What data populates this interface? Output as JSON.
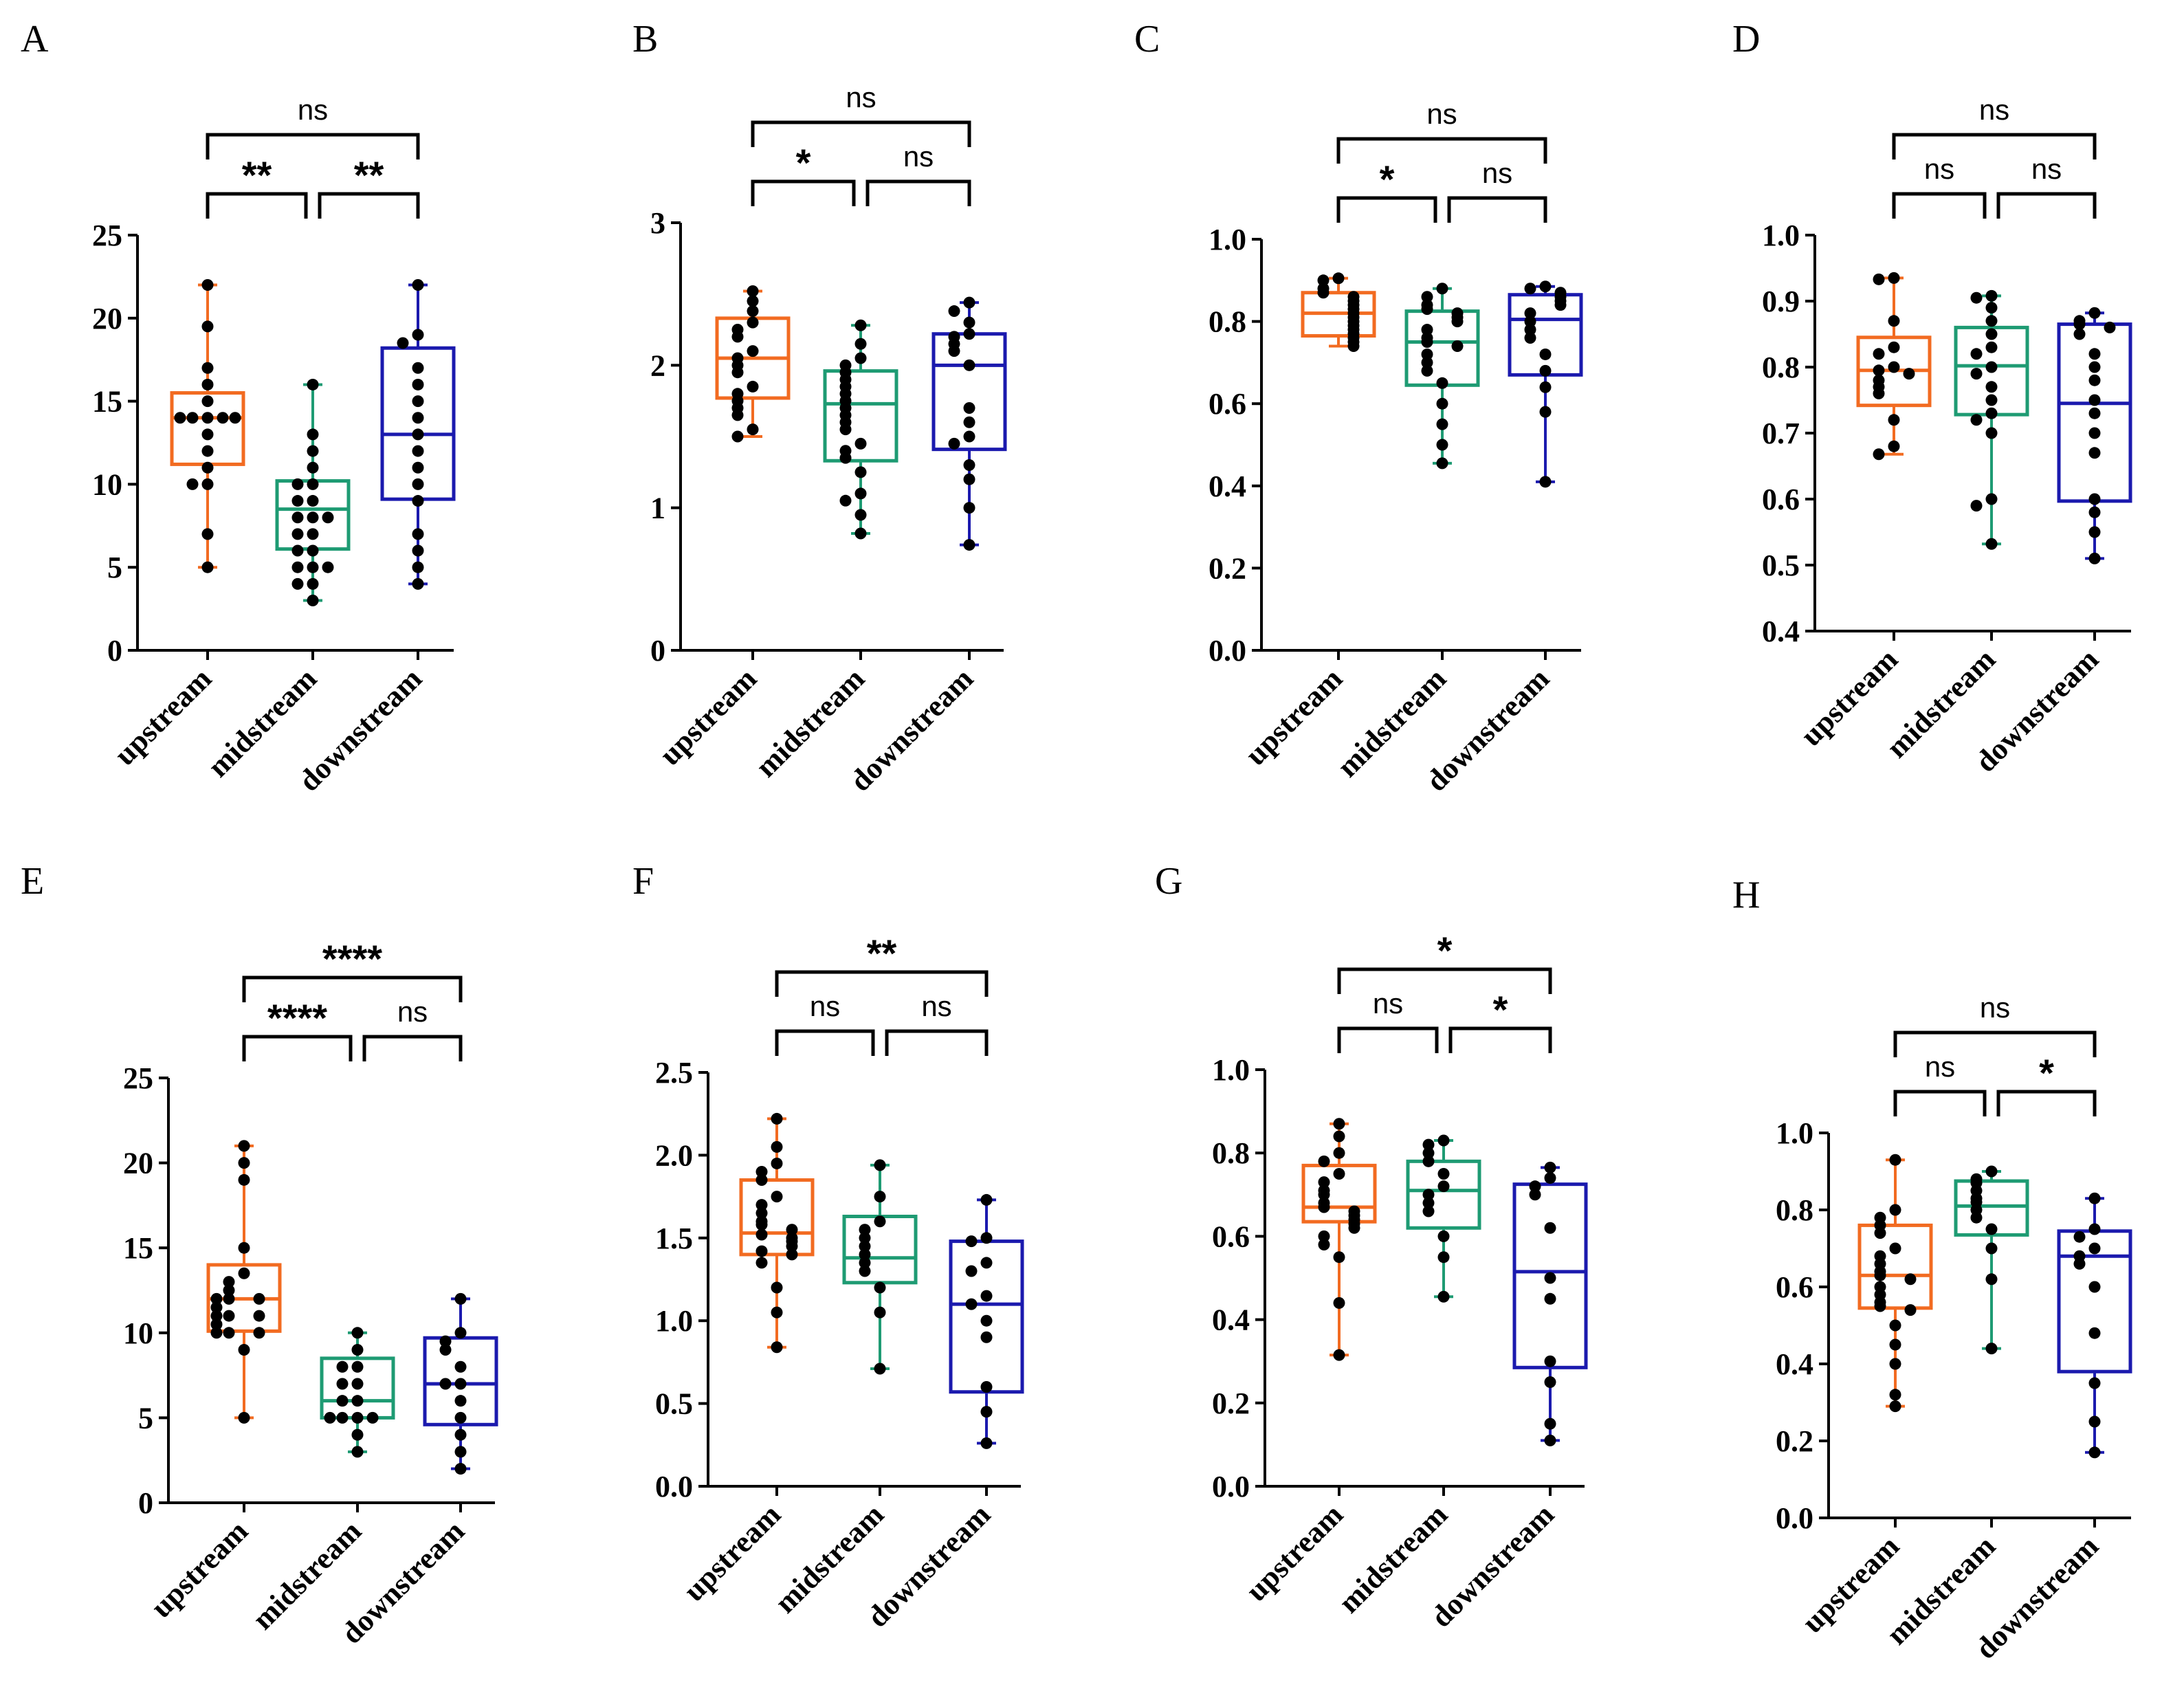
{
  "colors": {
    "upstream": "#F26B21",
    "midstream": "#1E9B73",
    "downstream": "#1B1AAE",
    "point": "#000000"
  },
  "chart_data": [
    {
      "panel": "A",
      "type": "box",
      "categories": [
        "upstream",
        "midstream",
        "downstream"
      ],
      "ylim": [
        0,
        25
      ],
      "yticks": [
        0,
        5,
        10,
        15,
        20,
        25
      ],
      "ytick_labels": [
        "0",
        "5",
        "10",
        "15",
        "20",
        "25"
      ],
      "boxes": [
        {
          "min": 5,
          "q1": 11.2,
          "median": 14,
          "q3": 15.5,
          "max": 22
        },
        {
          "min": 3,
          "q1": 6.1,
          "median": 8.5,
          "q3": 10.2,
          "max": 16
        },
        {
          "min": 4,
          "q1": 9.1,
          "median": 13,
          "q3": 18.2,
          "max": 22
        }
      ],
      "points": [
        [
          22,
          19.5,
          17,
          16,
          15,
          14,
          14,
          14,
          14,
          14,
          13,
          12,
          11,
          10,
          10,
          7,
          5
        ],
        [
          16,
          13,
          12,
          11,
          10,
          10,
          9,
          9,
          8,
          8,
          8,
          7,
          7,
          6,
          6,
          5,
          5,
          5,
          4,
          4,
          3
        ],
        [
          22,
          19,
          18.5,
          17,
          16,
          15,
          14,
          13,
          12,
          11,
          10,
          9,
          7,
          6,
          5,
          4
        ]
      ],
      "comparisons": [
        {
          "from": 0,
          "to": 1,
          "level": 1,
          "label": "**"
        },
        {
          "from": 1,
          "to": 2,
          "level": 1,
          "label": "**"
        },
        {
          "from": 0,
          "to": 2,
          "level": 2,
          "label": "ns"
        }
      ]
    },
    {
      "panel": "B",
      "type": "box",
      "categories": [
        "upstream",
        "midstream",
        "downstream"
      ],
      "ylim": [
        0,
        3
      ],
      "yticks": [
        0,
        1,
        2,
        3
      ],
      "ytick_labels": [
        "0",
        "1",
        "2",
        "3"
      ],
      "boxes": [
        {
          "min": 1.5,
          "q1": 1.77,
          "median": 2.05,
          "q3": 2.33,
          "max": 2.52
        },
        {
          "min": 0.82,
          "q1": 1.33,
          "median": 1.73,
          "q3": 1.96,
          "max": 2.28
        },
        {
          "min": 0.74,
          "q1": 1.41,
          "median": 2.0,
          "q3": 2.22,
          "max": 2.44
        }
      ],
      "points": [
        [
          2.52,
          2.45,
          2.38,
          2.3,
          2.25,
          2.2,
          2.1,
          2.05,
          2.0,
          1.95,
          1.85,
          1.8,
          1.75,
          1.7,
          1.65,
          1.55,
          1.5
        ],
        [
          2.28,
          2.15,
          2.05,
          2.0,
          1.95,
          1.9,
          1.85,
          1.8,
          1.75,
          1.7,
          1.65,
          1.6,
          1.55,
          1.45,
          1.4,
          1.35,
          1.25,
          1.1,
          1.05,
          0.95,
          0.82
        ],
        [
          2.44,
          2.38,
          2.3,
          2.22,
          2.2,
          2.15,
          2.1,
          2.0,
          1.7,
          1.6,
          1.5,
          1.45,
          1.3,
          1.2,
          1.0,
          0.74
        ]
      ],
      "comparisons": [
        {
          "from": 0,
          "to": 1,
          "level": 1,
          "label": "*"
        },
        {
          "from": 1,
          "to": 2,
          "level": 1,
          "label": "ns"
        },
        {
          "from": 0,
          "to": 2,
          "level": 2,
          "label": "ns"
        }
      ]
    },
    {
      "panel": "C",
      "type": "box",
      "categories": [
        "upstream",
        "midstream",
        "downstream"
      ],
      "ylim": [
        0,
        1.0
      ],
      "yticks": [
        0,
        0.2,
        0.4,
        0.6,
        0.8,
        1.0
      ],
      "ytick_labels": [
        "0.0",
        "0.2",
        "0.4",
        "0.6",
        "0.8",
        "1.0"
      ],
      "boxes": [
        {
          "min": 0.74,
          "q1": 0.765,
          "median": 0.82,
          "q3": 0.87,
          "max": 0.905
        },
        {
          "min": 0.455,
          "q1": 0.645,
          "median": 0.75,
          "q3": 0.825,
          "max": 0.88
        },
        {
          "min": 0.41,
          "q1": 0.67,
          "median": 0.805,
          "q3": 0.865,
          "max": 0.885
        }
      ],
      "points": [
        [
          0.905,
          0.9,
          0.88,
          0.87,
          0.86,
          0.85,
          0.84,
          0.83,
          0.82,
          0.81,
          0.8,
          0.79,
          0.78,
          0.77,
          0.76,
          0.75,
          0.74
        ],
        [
          0.88,
          0.86,
          0.84,
          0.83,
          0.82,
          0.81,
          0.8,
          0.78,
          0.76,
          0.75,
          0.74,
          0.72,
          0.7,
          0.68,
          0.65,
          0.6,
          0.55,
          0.5,
          0.455
        ],
        [
          0.885,
          0.88,
          0.87,
          0.86,
          0.85,
          0.84,
          0.82,
          0.8,
          0.78,
          0.76,
          0.72,
          0.68,
          0.64,
          0.58,
          0.41
        ]
      ],
      "comparisons": [
        {
          "from": 0,
          "to": 1,
          "level": 1,
          "label": "*"
        },
        {
          "from": 1,
          "to": 2,
          "level": 1,
          "label": "ns"
        },
        {
          "from": 0,
          "to": 2,
          "level": 2,
          "label": "ns"
        }
      ]
    },
    {
      "panel": "D",
      "type": "box",
      "categories": [
        "upstream",
        "midstream",
        "downstream"
      ],
      "ylim": [
        0.4,
        1.0
      ],
      "yticks": [
        0.4,
        0.5,
        0.6,
        0.7,
        0.8,
        0.9,
        1.0
      ],
      "ytick_labels": [
        "0.4",
        "0.5",
        "0.6",
        "0.7",
        "0.8",
        "0.9",
        "1.0"
      ],
      "boxes": [
        {
          "min": 0.668,
          "q1": 0.742,
          "median": 0.795,
          "q3": 0.845,
          "max": 0.935
        },
        {
          "min": 0.532,
          "q1": 0.728,
          "median": 0.802,
          "q3": 0.86,
          "max": 0.908
        },
        {
          "min": 0.51,
          "q1": 0.597,
          "median": 0.745,
          "q3": 0.865,
          "max": 0.882
        }
      ],
      "points": [
        [
          0.935,
          0.933,
          0.87,
          0.83,
          0.82,
          0.8,
          0.795,
          0.79,
          0.78,
          0.77,
          0.76,
          0.72,
          0.68,
          0.668
        ],
        [
          0.908,
          0.905,
          0.89,
          0.87,
          0.85,
          0.83,
          0.82,
          0.8,
          0.79,
          0.77,
          0.75,
          0.73,
          0.72,
          0.7,
          0.6,
          0.59,
          0.532
        ],
        [
          0.882,
          0.87,
          0.865,
          0.86,
          0.85,
          0.82,
          0.8,
          0.78,
          0.75,
          0.73,
          0.7,
          0.67,
          0.6,
          0.58,
          0.55,
          0.51
        ]
      ],
      "comparisons": [
        {
          "from": 0,
          "to": 1,
          "level": 1,
          "label": "ns"
        },
        {
          "from": 1,
          "to": 2,
          "level": 1,
          "label": "ns"
        },
        {
          "from": 0,
          "to": 2,
          "level": 2,
          "label": "ns"
        }
      ]
    },
    {
      "panel": "E",
      "type": "box",
      "categories": [
        "upstream",
        "midstream",
        "downstream"
      ],
      "ylim": [
        0,
        25
      ],
      "yticks": [
        0,
        5,
        10,
        15,
        20,
        25
      ],
      "ytick_labels": [
        "0",
        "5",
        "10",
        "15",
        "20",
        "25"
      ],
      "boxes": [
        {
          "min": 5,
          "q1": 10.1,
          "median": 12,
          "q3": 14,
          "max": 21
        },
        {
          "min": 3,
          "q1": 5,
          "median": 6,
          "q3": 8.5,
          "max": 10
        },
        {
          "min": 2,
          "q1": 4.6,
          "median": 7,
          "q3": 9.7,
          "max": 12
        }
      ],
      "points": [
        [
          21,
          20,
          19,
          15,
          13.5,
          13,
          12.5,
          12,
          12,
          12,
          11.5,
          11,
          11,
          11,
          10.5,
          10,
          10,
          10,
          9,
          5
        ],
        [
          10,
          9,
          8,
          8,
          7,
          7,
          6,
          6,
          5,
          5,
          5,
          5,
          4,
          3
        ],
        [
          12,
          10,
          9.5,
          9,
          8,
          7,
          7,
          6,
          5,
          4,
          3,
          2
        ]
      ],
      "comparisons": [
        {
          "from": 0,
          "to": 1,
          "level": 1,
          "label": "****"
        },
        {
          "from": 1,
          "to": 2,
          "level": 1,
          "label": "ns"
        },
        {
          "from": 0,
          "to": 2,
          "level": 2,
          "label": "****"
        }
      ]
    },
    {
      "panel": "F",
      "type": "box",
      "categories": [
        "upstream",
        "midstream",
        "downstream"
      ],
      "ylim": [
        0,
        2.5
      ],
      "yticks": [
        0,
        0.5,
        1.0,
        1.5,
        2.0,
        2.5
      ],
      "ytick_labels": [
        "0.0",
        "0.5",
        "1.0",
        "1.5",
        "2.0",
        "2.5"
      ],
      "boxes": [
        {
          "min": 0.84,
          "q1": 1.4,
          "median": 1.53,
          "q3": 1.85,
          "max": 2.22
        },
        {
          "min": 0.71,
          "q1": 1.23,
          "median": 1.38,
          "q3": 1.63,
          "max": 1.94
        },
        {
          "min": 0.26,
          "q1": 0.57,
          "median": 1.1,
          "q3": 1.48,
          "max": 1.73
        }
      ],
      "points": [
        [
          2.22,
          2.05,
          1.95,
          1.9,
          1.85,
          1.75,
          1.7,
          1.65,
          1.6,
          1.58,
          1.55,
          1.52,
          1.5,
          1.48,
          1.45,
          1.42,
          1.4,
          1.35,
          1.2,
          1.05,
          0.84
        ],
        [
          1.94,
          1.75,
          1.6,
          1.55,
          1.5,
          1.45,
          1.4,
          1.35,
          1.3,
          1.2,
          1.05,
          0.71
        ],
        [
          1.73,
          1.5,
          1.48,
          1.35,
          1.3,
          1.15,
          1.1,
          1.0,
          0.9,
          0.6,
          0.45,
          0.26
        ]
      ],
      "comparisons": [
        {
          "from": 0,
          "to": 1,
          "level": 1,
          "label": "ns"
        },
        {
          "from": 1,
          "to": 2,
          "level": 1,
          "label": "ns"
        },
        {
          "from": 0,
          "to": 2,
          "level": 2,
          "label": "**"
        }
      ]
    },
    {
      "panel": "G",
      "type": "box",
      "categories": [
        "upstream",
        "midstream",
        "downstream"
      ],
      "ylim": [
        0,
        1.0
      ],
      "yticks": [
        0,
        0.2,
        0.4,
        0.6,
        0.8,
        1.0
      ],
      "ytick_labels": [
        "0.0",
        "0.2",
        "0.4",
        "0.6",
        "0.8",
        "1.0"
      ],
      "boxes": [
        {
          "min": 0.315,
          "q1": 0.635,
          "median": 0.67,
          "q3": 0.77,
          "max": 0.87
        },
        {
          "min": 0.455,
          "q1": 0.62,
          "median": 0.71,
          "q3": 0.78,
          "max": 0.83
        },
        {
          "min": 0.11,
          "q1": 0.285,
          "median": 0.515,
          "q3": 0.725,
          "max": 0.765
        }
      ],
      "points": [
        [
          0.87,
          0.84,
          0.8,
          0.78,
          0.75,
          0.73,
          0.71,
          0.7,
          0.68,
          0.67,
          0.66,
          0.65,
          0.64,
          0.63,
          0.62,
          0.6,
          0.58,
          0.55,
          0.44,
          0.315
        ],
        [
          0.83,
          0.82,
          0.8,
          0.78,
          0.75,
          0.72,
          0.7,
          0.68,
          0.66,
          0.6,
          0.55,
          0.455
        ],
        [
          0.765,
          0.74,
          0.72,
          0.7,
          0.62,
          0.5,
          0.45,
          0.3,
          0.25,
          0.15,
          0.11
        ]
      ],
      "comparisons": [
        {
          "from": 0,
          "to": 1,
          "level": 1,
          "label": "ns"
        },
        {
          "from": 1,
          "to": 2,
          "level": 1,
          "label": "*"
        },
        {
          "from": 0,
          "to": 2,
          "level": 2,
          "label": "*"
        }
      ]
    },
    {
      "panel": "H",
      "type": "box",
      "categories": [
        "upstream",
        "midstream",
        "downstream"
      ],
      "ylim": [
        0,
        1.0
      ],
      "yticks": [
        0,
        0.2,
        0.4,
        0.6,
        0.8,
        1.0
      ],
      "ytick_labels": [
        "0.0",
        "0.2",
        "0.4",
        "0.6",
        "0.8",
        "1.0"
      ],
      "boxes": [
        {
          "min": 0.29,
          "q1": 0.545,
          "median": 0.63,
          "q3": 0.76,
          "max": 0.93
        },
        {
          "min": 0.44,
          "q1": 0.735,
          "median": 0.81,
          "q3": 0.875,
          "max": 0.9
        },
        {
          "min": 0.17,
          "q1": 0.38,
          "median": 0.68,
          "q3": 0.745,
          "max": 0.83
        }
      ],
      "points": [
        [
          0.93,
          0.8,
          0.78,
          0.76,
          0.74,
          0.7,
          0.68,
          0.66,
          0.64,
          0.63,
          0.62,
          0.6,
          0.58,
          0.56,
          0.55,
          0.54,
          0.5,
          0.45,
          0.4,
          0.32,
          0.29
        ],
        [
          0.9,
          0.88,
          0.87,
          0.85,
          0.83,
          0.82,
          0.8,
          0.78,
          0.75,
          0.7,
          0.62,
          0.44
        ],
        [
          0.83,
          0.75,
          0.73,
          0.7,
          0.68,
          0.66,
          0.6,
          0.48,
          0.35,
          0.25,
          0.17
        ]
      ],
      "comparisons": [
        {
          "from": 0,
          "to": 1,
          "level": 1,
          "label": "ns"
        },
        {
          "from": 1,
          "to": 2,
          "level": 1,
          "label": "*"
        },
        {
          "from": 0,
          "to": 2,
          "level": 2,
          "label": "ns"
        }
      ]
    }
  ]
}
